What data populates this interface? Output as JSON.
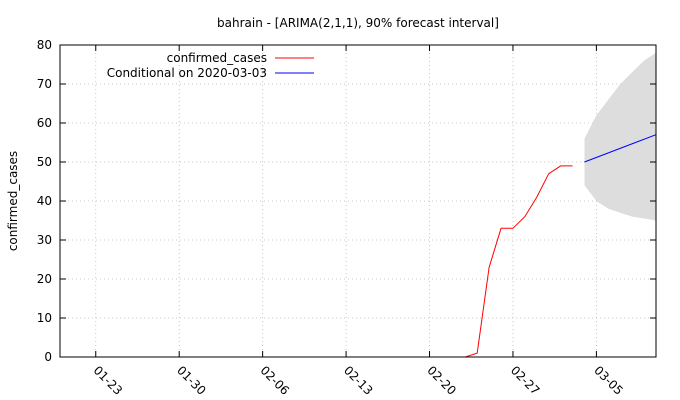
{
  "chart_data": {
    "type": "line",
    "title": "bahrain -  [ARIMA(2,1,1), 90% forecast interval]",
    "xlabel": "",
    "ylabel": "confirmed_cases",
    "ylim": [
      0,
      80
    ],
    "yticks": [
      0,
      10,
      20,
      30,
      40,
      50,
      60,
      70,
      80
    ],
    "xlim": [
      "2020-01-20",
      "2020-03-10"
    ],
    "xticks": [
      "2020-01-23",
      "2020-01-30",
      "2020-02-06",
      "2020-02-13",
      "2020-02-20",
      "2020-02-27",
      "2020-03-05"
    ],
    "xtick_labels": [
      "01-23",
      "01-30",
      "02-06",
      "02-13",
      "02-20",
      "02-27",
      "03-05"
    ],
    "grid": true,
    "legend_position": "top-left",
    "series": [
      {
        "name": "confirmed_cases",
        "color": "#ff0000",
        "points": [
          {
            "x": "2020-02-23",
            "y": 0
          },
          {
            "x": "2020-02-24",
            "y": 1
          },
          {
            "x": "2020-02-25",
            "y": 23
          },
          {
            "x": "2020-02-26",
            "y": 33
          },
          {
            "x": "2020-02-27",
            "y": 33
          },
          {
            "x": "2020-02-28",
            "y": 36
          },
          {
            "x": "2020-02-29",
            "y": 41
          },
          {
            "x": "2020-03-01",
            "y": 47
          },
          {
            "x": "2020-03-02",
            "y": 49
          },
          {
            "x": "2020-03-03",
            "y": 49
          }
        ]
      },
      {
        "name": "Conditional on 2020-03-03",
        "color": "#0000ff",
        "points": [
          {
            "x": "2020-03-04",
            "y": 50
          },
          {
            "x": "2020-03-10",
            "y": 57
          }
        ]
      }
    ],
    "forecast_interval": {
      "level": "90%",
      "color": "#dddddd",
      "points": [
        {
          "x": "2020-03-04",
          "lower": 44,
          "upper": 56
        },
        {
          "x": "2020-03-05",
          "lower": 40,
          "upper": 62
        },
        {
          "x": "2020-03-06",
          "lower": 38,
          "upper": 66
        },
        {
          "x": "2020-03-07",
          "lower": 37,
          "upper": 70
        },
        {
          "x": "2020-03-08",
          "lower": 36,
          "upper": 73
        },
        {
          "x": "2020-03-09",
          "lower": 35.5,
          "upper": 76
        },
        {
          "x": "2020-03-10",
          "lower": 35,
          "upper": 78
        }
      ]
    }
  }
}
